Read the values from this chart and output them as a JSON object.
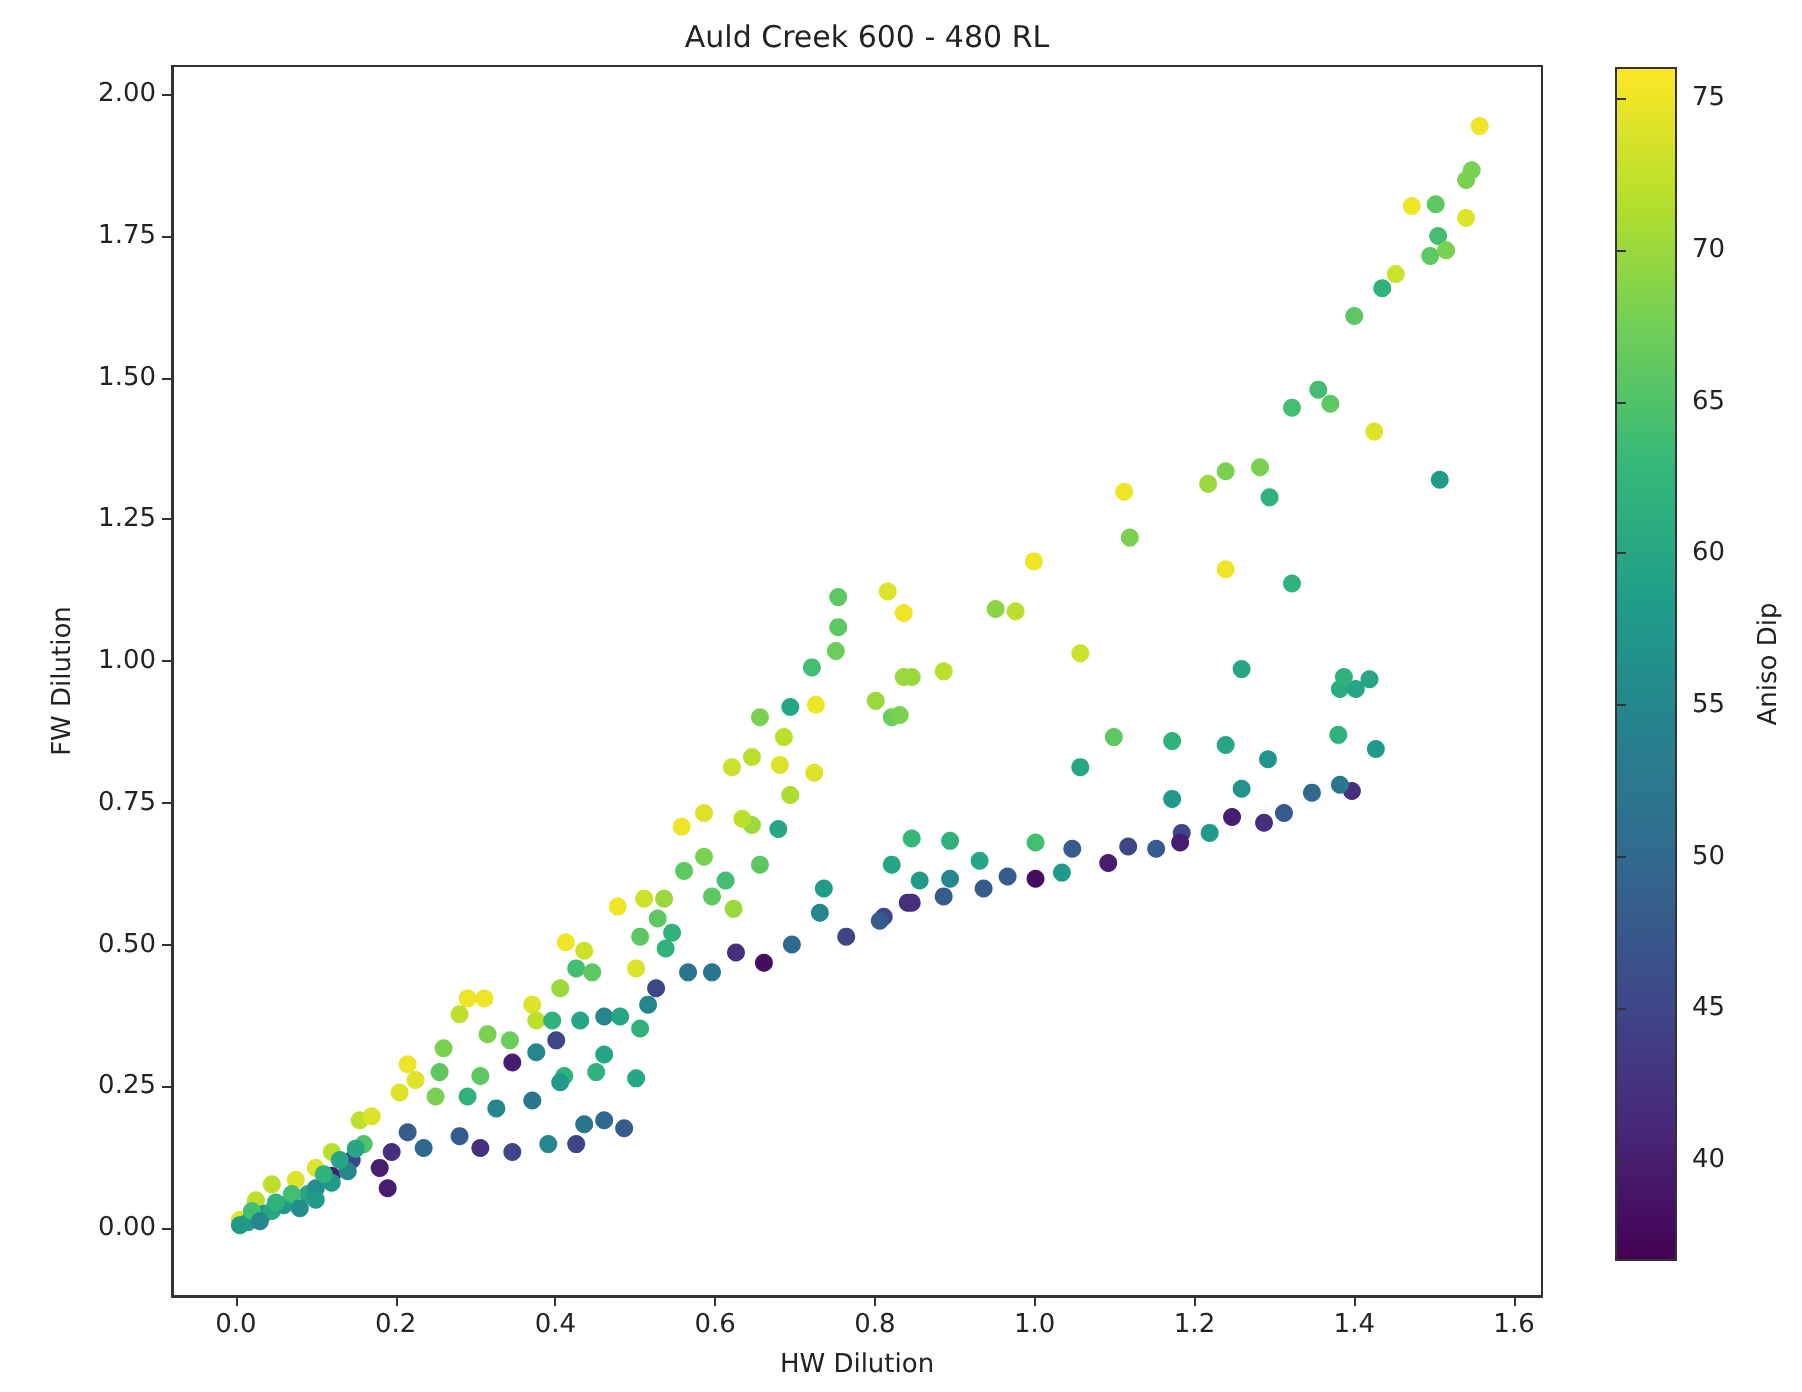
{
  "chart_data": {
    "type": "scatter",
    "title": "Auld Creek 600 - 480 RL",
    "xlabel": "HW Dilution",
    "ylabel": "FW Dilution",
    "clabel": "Aniso Dip",
    "x": [
      1.557,
      1.547,
      1.54,
      1.472,
      1.502,
      1.54,
      1.505,
      1.495,
      1.515,
      1.452,
      1.435,
      1.4,
      1.355,
      1.37,
      1.322,
      1.425,
      1.507,
      1.282,
      1.294,
      1.239,
      1.217,
      1.112,
      1.119,
      1.239,
      1.322,
      0.999,
      0.951,
      0.976,
      1.057,
      0.886,
      0.836,
      0.821,
      1.259,
      1.382,
      1.402,
      1.419,
      1.387,
      1.099,
      1.172,
      1.239,
      1.38,
      1.427,
      1.057,
      1.292,
      1.172,
      1.259,
      1.397,
      1.382,
      1.347,
      1.312,
      1.287,
      1.247,
      1.219,
      1.184,
      1.182,
      1.152,
      1.117,
      1.092,
      1.047,
      1.034,
      1.001,
      1.001,
      0.966,
      0.936,
      0.931,
      0.894,
      0.886,
      0.894,
      0.856,
      0.846,
      0.841,
      0.821,
      0.811,
      0.816,
      0.836,
      0.754,
      0.754,
      0.751,
      0.721,
      0.846,
      0.801,
      0.831,
      0.726,
      0.694,
      0.656,
      0.686,
      0.681,
      0.724,
      0.646,
      0.621,
      0.694,
      0.646,
      0.634,
      0.679,
      0.586,
      0.558,
      0.656,
      0.586,
      0.561,
      0.613,
      0.596,
      0.623,
      0.511,
      0.536,
      0.478,
      0.528,
      0.546,
      0.506,
      0.538,
      0.413,
      0.436,
      0.426,
      0.406,
      0.446,
      0.501,
      0.29,
      0.311,
      0.28,
      0.315,
      0.371,
      0.376,
      0.343,
      0.396,
      0.431,
      0.461,
      0.481,
      0.516,
      0.506,
      0.526,
      0.566,
      0.596,
      0.626,
      0.661,
      0.696,
      0.731,
      0.764,
      0.806,
      0.846,
      0.736,
      0.401,
      0.346,
      0.376,
      0.411,
      0.451,
      0.501,
      0.461,
      0.406,
      0.371,
      0.326,
      0.29,
      0.255,
      0.25,
      0.225,
      0.205,
      0.215,
      0.26,
      0.306,
      0.486,
      0.461,
      0.426,
      0.436,
      0.391,
      0.346,
      0.306,
      0.28,
      0.235,
      0.215,
      0.195,
      0.18,
      0.16,
      0.155,
      0.17,
      0.145,
      0.12,
      0.1,
      0.075,
      0.045,
      0.025,
      0.005,
      0.12,
      0.19,
      0.005,
      0.015,
      0.035,
      0.045,
      0.06,
      0.09,
      0.1,
      0.12,
      0.14,
      0.05,
      0.07,
      0.02,
      0.11,
      0.13,
      0.03,
      0.08,
      0.1,
      0.15
    ],
    "values": [
      1.944,
      1.866,
      1.849,
      1.803,
      1.806,
      1.782,
      1.75,
      1.715,
      1.725,
      1.683,
      1.658,
      1.609,
      1.479,
      1.454,
      1.447,
      1.405,
      1.32,
      1.342,
      1.289,
      1.335,
      1.313,
      1.299,
      1.218,
      1.162,
      1.137,
      1.176,
      1.092,
      1.088,
      1.014,
      0.982,
      0.972,
      0.901,
      0.986,
      0.951,
      0.951,
      0.968,
      0.972,
      0.866,
      0.859,
      0.852,
      0.87,
      0.845,
      0.813,
      0.827,
      0.757,
      0.775,
      0.771,
      0.782,
      0.768,
      0.732,
      0.715,
      0.725,
      0.697,
      0.697,
      0.68,
      0.669,
      0.673,
      0.644,
      0.669,
      0.627,
      0.616,
      0.68,
      0.62,
      0.599,
      0.648,
      0.616,
      0.585,
      0.683,
      0.613,
      0.687,
      0.574,
      0.641,
      0.549,
      1.123,
      1.085,
      1.113,
      1.06,
      1.018,
      0.989,
      0.972,
      0.93,
      0.905,
      0.923,
      0.919,
      0.901,
      0.866,
      0.817,
      0.803,
      0.831,
      0.813,
      0.764,
      0.711,
      0.722,
      0.704,
      0.732,
      0.708,
      0.641,
      0.655,
      0.63,
      0.613,
      0.585,
      0.563,
      0.581,
      0.581,
      0.567,
      0.546,
      0.521,
      0.514,
      0.493,
      0.504,
      0.489,
      0.458,
      0.423,
      0.451,
      0.458,
      0.405,
      0.405,
      0.377,
      0.342,
      0.394,
      0.366,
      0.331,
      0.366,
      0.366,
      0.373,
      0.373,
      0.394,
      0.352,
      0.423,
      0.451,
      0.451,
      0.486,
      0.468,
      0.5,
      0.556,
      0.514,
      0.542,
      0.574,
      0.599,
      0.331,
      0.292,
      0.31,
      0.268,
      0.275,
      0.264,
      0.306,
      0.257,
      0.225,
      0.211,
      0.232,
      0.275,
      0.232,
      0.261,
      0.239,
      0.289,
      0.317,
      0.268,
      0.176,
      0.19,
      0.148,
      0.183,
      0.148,
      0.134,
      0.141,
      0.162,
      0.141,
      0.169,
      0.134,
      0.106,
      0.148,
      0.19,
      0.197,
      0.12,
      0.134,
      0.106,
      0.085,
      0.077,
      0.049,
      0.014,
      0.092,
      0.07,
      0.005,
      0.01,
      0.025,
      0.03,
      0.04,
      0.06,
      0.07,
      0.08,
      0.1,
      0.045,
      0.06,
      0.03,
      0.095,
      0.12,
      0.012,
      0.035,
      0.05,
      0.14
    ],
    "cvalues": [
      75,
      68,
      68,
      75,
      66,
      74,
      64,
      66,
      68,
      73,
      62,
      66,
      64,
      66,
      64,
      74,
      58,
      68,
      62,
      68,
      70,
      75,
      68,
      75,
      62,
      75,
      69,
      72,
      73,
      72,
      70,
      67,
      60,
      61,
      60,
      60,
      62,
      66,
      62,
      60,
      62,
      58,
      60,
      57,
      58,
      57,
      42,
      52,
      50,
      48,
      42,
      40,
      58,
      45,
      40,
      48,
      45,
      40,
      48,
      58,
      38,
      64,
      48,
      48,
      60,
      55,
      48,
      62,
      58,
      63,
      42,
      60,
      45,
      74,
      75,
      66,
      66,
      67,
      64,
      70,
      70,
      68,
      75,
      60,
      68,
      72,
      74,
      74,
      72,
      73,
      71,
      70,
      72,
      60,
      74,
      75,
      66,
      68,
      66,
      64,
      66,
      70,
      73,
      70,
      75,
      66,
      62,
      66,
      62,
      75,
      73,
      64,
      70,
      66,
      74,
      75,
      75,
      72,
      68,
      74,
      72,
      67,
      62,
      60,
      55,
      60,
      55,
      62,
      45,
      52,
      52,
      42,
      38,
      50,
      55,
      45,
      48,
      42,
      58,
      45,
      40,
      55,
      62,
      62,
      60,
      60,
      58,
      52,
      55,
      62,
      66,
      68,
      74,
      74,
      75,
      68,
      66,
      48,
      50,
      45,
      52,
      55,
      45,
      42,
      48,
      50,
      48,
      42,
      40,
      65,
      72,
      74,
      45,
      72,
      74,
      74,
      72,
      72,
      74,
      40,
      40,
      58,
      58,
      58,
      60,
      58,
      60,
      56,
      58,
      55,
      62,
      64,
      64,
      62,
      60,
      55,
      56,
      58,
      60
    ],
    "xlim": [
      -0.08,
      1.635
    ],
    "ylim": [
      -0.12,
      2.05
    ],
    "xticks": [
      {
        "value": 0,
        "label": "0.0"
      },
      {
        "value": 0.2,
        "label": "0.2"
      },
      {
        "value": 0.4,
        "label": "0.4"
      },
      {
        "value": 0.6,
        "label": "0.6"
      },
      {
        "value": 0.8,
        "label": "0.8"
      },
      {
        "value": 1,
        "label": "1.0"
      },
      {
        "value": 1.2,
        "label": "1.2"
      },
      {
        "value": 1.4,
        "label": "1.4"
      },
      {
        "value": 1.6,
        "label": "1.6"
      }
    ],
    "yticks": [
      {
        "value": 0,
        "label": "0.00"
      },
      {
        "value": 0.25,
        "label": "0.25"
      },
      {
        "value": 0.5,
        "label": "0.50"
      },
      {
        "value": 0.75,
        "label": "0.75"
      },
      {
        "value": 1,
        "label": "1.00"
      },
      {
        "value": 1.25,
        "label": "1.25"
      },
      {
        "value": 1.5,
        "label": "1.50"
      },
      {
        "value": 1.75,
        "label": "1.75"
      },
      {
        "value": 2,
        "label": "2.00"
      }
    ],
    "clim": [
      36.7,
      76
    ],
    "cticks": [
      40,
      45,
      50,
      55,
      60,
      65,
      70,
      75
    ],
    "marker": "circle",
    "grid": false
  }
}
